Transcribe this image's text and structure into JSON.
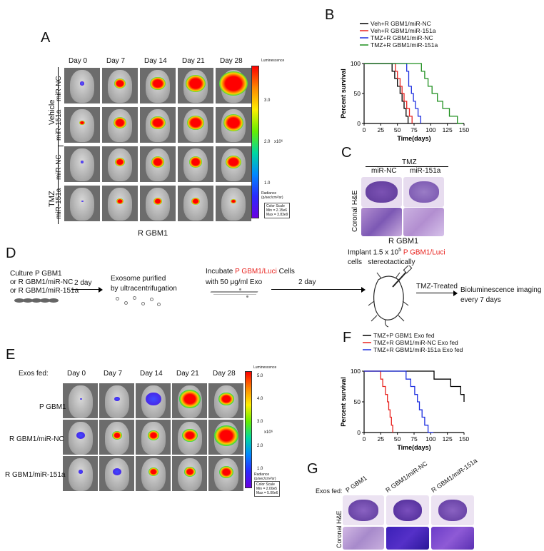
{
  "panels": {
    "A": "A",
    "B": "B",
    "C": "C",
    "D": "D",
    "E": "E",
    "F": "F",
    "G": "G"
  },
  "panelA": {
    "days": [
      "Day 0",
      "Day 7",
      "Day 14",
      "Day 21",
      "Day 28"
    ],
    "group_vehicle": "Vehicle",
    "group_tmz": "TMZ",
    "row_labels": [
      "miR-NC",
      "miR-151a",
      "miR-NC",
      "miR-151a"
    ],
    "caption": "R GBM1",
    "scale_title": "Luminescence",
    "scale_ticks": [
      "3.0",
      "2.0",
      "1.0"
    ],
    "scale_exp": "x10⁶",
    "scale_unit": "Radiance\n(p/sec/cm²/sr)",
    "colorscale_box": "Color Scale\nMin = 2.15e6\nMax = 3.83e9"
  },
  "panelB_legend": [
    "Veh+R GBM1/miR-NC",
    "Veh+R GBM1/miR-151a",
    "TMZ+R GBM1/miR-NC",
    "TMZ+R GBM1/miR-151a"
  ],
  "panelC": {
    "top": "TMZ",
    "cols": [
      "miR-NC",
      "miR-151a"
    ],
    "side": "Coronal H&E",
    "caption": "R GBM1"
  },
  "panelD": {
    "step1": "Culture P GBM1\nor R GBM1/miR-NC\nor R GBM1/miR-151a",
    "arrow1": "2 day",
    "step2": "Exosome purified\nby ultracentrifugation",
    "step3a": "Incubate",
    "step3b": "P GBM1/Luci",
    "step3c": "Cells",
    "step3d": "with 50 μg/ml Exo",
    "arrow2": "2 day",
    "implant_a": "Implant 1.5 x 10",
    "implant_exp": "5",
    "implant_b": "P GBM1/Luci",
    "implant_c": "cells   stereotactically",
    "treat": "TMZ-Treated",
    "final": "Bioluminescence imaging\nevery 7 days"
  },
  "panelE": {
    "header": "Exos fed:",
    "days": [
      "Day 0",
      "Day 7",
      "Day 14",
      "Day 21",
      "Day 28"
    ],
    "row_labels": [
      "P GBM1",
      "R GBM1/miR-NC",
      "R GBM1/miR-151a"
    ],
    "scale_title": "Luminescence",
    "scale_ticks": [
      "5.0",
      "4.0",
      "3.0",
      "2.0",
      "1.0"
    ],
    "scale_exp": "x10⁶",
    "scale_unit": "Radiance\n(p/sec/cm²/sr)",
    "colorscale_box": "Color Scale\nMin = 2.00e5\nMax = 5.00e6"
  },
  "panelF_legend": [
    "TMZ+P GBM1 Exo fed",
    "TMZ+R GBM1/miR-NC Exo fed",
    "TMZ+R GBM1/miR-151a Exo fed"
  ],
  "panelG": {
    "header": "Exos fed:",
    "cols": [
      "P GBM1",
      "R GBM1/miR-NC",
      "R GBM1/miR-151a"
    ],
    "side": "Coronal H&E"
  },
  "colors": {
    "black": "#000000",
    "red": "#e8231f",
    "blue": "#1d2fe0",
    "green": "#1e8f1e"
  },
  "chart_data": [
    {
      "type": "line",
      "panel": "B",
      "xlabel": "Time(days)",
      "ylabel": "Percent survival",
      "xlim": [
        0,
        150
      ],
      "ylim": [
        0,
        100
      ],
      "xticks": [
        0,
        25,
        50,
        75,
        100,
        125,
        150
      ],
      "yticks": [
        0,
        50,
        100
      ],
      "series": [
        {
          "name": "Veh+R GBM1/miR-NC",
          "color": "#000000",
          "steps": [
            [
              0,
              100
            ],
            [
              42,
              100
            ],
            [
              42,
              87
            ],
            [
              46,
              87
            ],
            [
              46,
              75
            ],
            [
              50,
              75
            ],
            [
              50,
              62
            ],
            [
              54,
              62
            ],
            [
              54,
              50
            ],
            [
              57,
              50
            ],
            [
              57,
              37
            ],
            [
              60,
              37
            ],
            [
              60,
              25
            ],
            [
              63,
              25
            ],
            [
              63,
              12
            ],
            [
              66,
              12
            ],
            [
              66,
              0
            ]
          ]
        },
        {
          "name": "Veh+R GBM1/miR-151a",
          "color": "#e8231f",
          "steps": [
            [
              0,
              100
            ],
            [
              47,
              100
            ],
            [
              47,
              87
            ],
            [
              50,
              87
            ],
            [
              50,
              75
            ],
            [
              54,
              75
            ],
            [
              54,
              62
            ],
            [
              57,
              62
            ],
            [
              57,
              50
            ],
            [
              60,
              50
            ],
            [
              60,
              37
            ],
            [
              64,
              37
            ],
            [
              64,
              25
            ],
            [
              68,
              25
            ],
            [
              68,
              12
            ],
            [
              72,
              12
            ],
            [
              72,
              0
            ]
          ]
        },
        {
          "name": "TMZ+R GBM1/miR-NC",
          "color": "#1d2fe0",
          "steps": [
            [
              0,
              100
            ],
            [
              64,
              100
            ],
            [
              64,
              87
            ],
            [
              67,
              87
            ],
            [
              67,
              62
            ],
            [
              71,
              62
            ],
            [
              71,
              50
            ],
            [
              74,
              50
            ],
            [
              74,
              37
            ],
            [
              77,
              37
            ],
            [
              77,
              25
            ],
            [
              81,
              25
            ],
            [
              81,
              12
            ],
            [
              85,
              12
            ],
            [
              85,
              0
            ]
          ]
        },
        {
          "name": "TMZ+R GBM1/miR-151a",
          "color": "#1e8f1e",
          "steps": [
            [
              0,
              100
            ],
            [
              86,
              100
            ],
            [
              86,
              87
            ],
            [
              91,
              87
            ],
            [
              91,
              75
            ],
            [
              96,
              75
            ],
            [
              96,
              62
            ],
            [
              102,
              62
            ],
            [
              102,
              50
            ],
            [
              110,
              50
            ],
            [
              110,
              37
            ],
            [
              118,
              37
            ],
            [
              118,
              25
            ],
            [
              128,
              25
            ],
            [
              128,
              12
            ],
            [
              140,
              12
            ],
            [
              140,
              0
            ],
            [
              148,
              0
            ]
          ]
        }
      ]
    },
    {
      "type": "line",
      "panel": "F",
      "xlabel": "Time(days)",
      "ylabel": "Percent survival",
      "xlim": [
        0,
        150
      ],
      "ylim": [
        0,
        100
      ],
      "xticks": [
        0,
        25,
        50,
        75,
        100,
        125,
        150
      ],
      "yticks": [
        0,
        50,
        100
      ],
      "series": [
        {
          "name": "TMZ+P GBM1 Exo fed",
          "color": "#000000",
          "steps": [
            [
              0,
              100
            ],
            [
              105,
              100
            ],
            [
              105,
              87
            ],
            [
              130,
              87
            ],
            [
              130,
              75
            ],
            [
              145,
              75
            ],
            [
              145,
              62
            ],
            [
              150,
              62
            ],
            [
              150,
              50
            ]
          ]
        },
        {
          "name": "TMZ+R GBM1/miR-NC Exo fed",
          "color": "#e8231f",
          "steps": [
            [
              0,
              100
            ],
            [
              25,
              100
            ],
            [
              25,
              87
            ],
            [
              28,
              87
            ],
            [
              28,
              75
            ],
            [
              32,
              75
            ],
            [
              32,
              62
            ],
            [
              35,
              62
            ],
            [
              35,
              50
            ],
            [
              37,
              50
            ],
            [
              37,
              37
            ],
            [
              39,
              37
            ],
            [
              39,
              25
            ],
            [
              41,
              25
            ],
            [
              41,
              12
            ],
            [
              43,
              12
            ],
            [
              43,
              0
            ]
          ]
        },
        {
          "name": "TMZ+R GBM1/miR-151a Exo fed",
          "color": "#1d2fe0",
          "steps": [
            [
              0,
              100
            ],
            [
              63,
              100
            ],
            [
              63,
              87
            ],
            [
              70,
              87
            ],
            [
              70,
              75
            ],
            [
              76,
              75
            ],
            [
              76,
              62
            ],
            [
              80,
              62
            ],
            [
              80,
              50
            ],
            [
              83,
              50
            ],
            [
              83,
              37
            ],
            [
              87,
              37
            ],
            [
              87,
              25
            ],
            [
              91,
              25
            ],
            [
              91,
              12
            ],
            [
              96,
              12
            ],
            [
              96,
              0
            ],
            [
              104,
              0
            ]
          ]
        }
      ]
    }
  ]
}
